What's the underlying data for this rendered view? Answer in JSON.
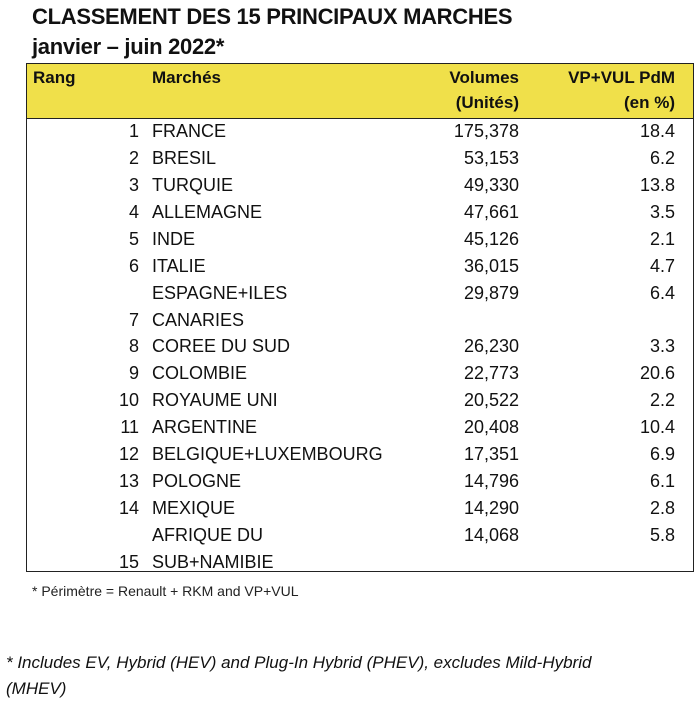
{
  "title_line1": "CLASSEMENT DES 15 PRINCIPAUX MARCHES",
  "title_line2": "janvier – juin 2022*",
  "headers": {
    "rank": "Rang",
    "market": "Marchés",
    "volumes_1": "Volumes",
    "volumes_2": "(Unités)",
    "pdm_1": "VP+VUL PdM",
    "pdm_2": "(en %)"
  },
  "rows": [
    {
      "rank": "1",
      "market": "FRANCE",
      "volume": "175,378",
      "pdm": "18.4"
    },
    {
      "rank": "2",
      "market": "BRESIL",
      "volume": "53,153",
      "pdm": "6.2"
    },
    {
      "rank": "3",
      "market": "TURQUIE",
      "volume": "49,330",
      "pdm": "13.8"
    },
    {
      "rank": "4",
      "market": "ALLEMAGNE",
      "volume": "47,661",
      "pdm": "3.5"
    },
    {
      "rank": "5",
      "market": "INDE",
      "volume": "45,126",
      "pdm": "2.1"
    },
    {
      "rank": "6",
      "market": "ITALIE",
      "volume": "36,015",
      "pdm": "4.7"
    },
    {
      "rank": "7",
      "market": "ESPAGNE+ILES",
      "market2": "CANARIES",
      "volume": "29,879",
      "pdm": "6.4"
    },
    {
      "rank": "8",
      "market": "COREE DU SUD",
      "volume": "26,230",
      "pdm": "3.3"
    },
    {
      "rank": "9",
      "market": "COLOMBIE",
      "volume": "22,773",
      "pdm": "20.6"
    },
    {
      "rank": "10",
      "market": "ROYAUME UNI",
      "volume": "20,522",
      "pdm": "2.2"
    },
    {
      "rank": "11",
      "market": "ARGENTINE",
      "volume": "20,408",
      "pdm": "10.4"
    },
    {
      "rank": "12",
      "market": "BELGIQUE+LUXEMBOURG",
      "volume": "17,351",
      "pdm": "6.9"
    },
    {
      "rank": "13",
      "market": "POLOGNE",
      "volume": "14,796",
      "pdm": "6.1"
    },
    {
      "rank": "14",
      "market": "MEXIQUE",
      "volume": "14,290",
      "pdm": "2.8"
    },
    {
      "rank": "15",
      "market": "AFRIQUE DU",
      "market2": "SUB+NAMIBIE",
      "volume": "14,068",
      "pdm": "5.8"
    }
  ],
  "note_perimetre": "* Périmètre = Renault + RKM and VP+VUL",
  "note_hybrid": "* Includes EV, Hybrid (HEV) and Plug-In Hybrid (PHEV), excludes Mild-Hybrid (MHEV)"
}
